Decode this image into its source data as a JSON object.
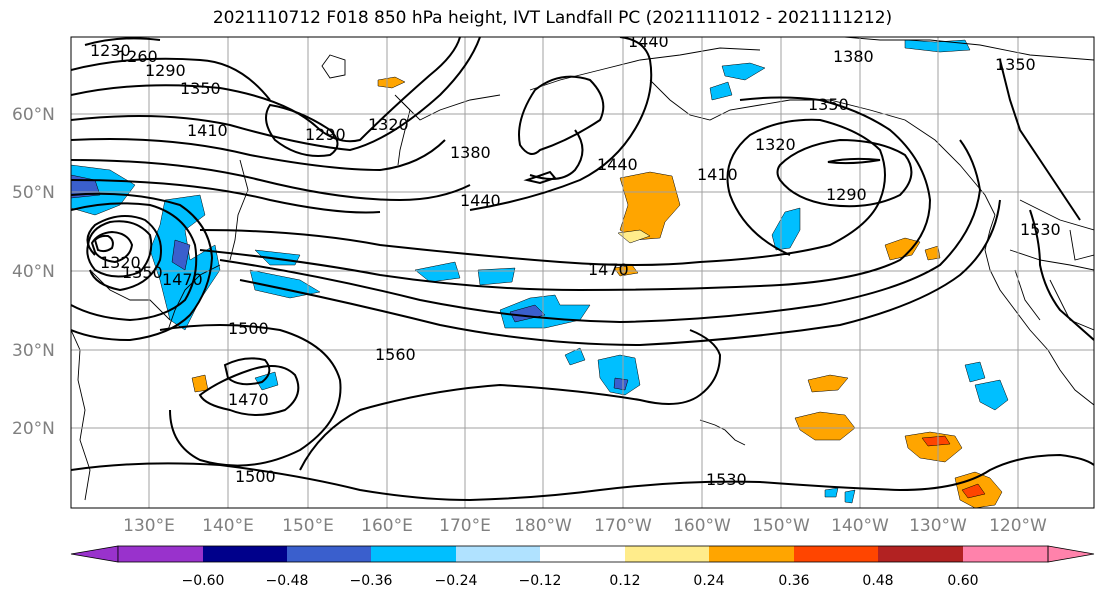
{
  "title": "2021110712 F018 850 hPa height, IVT Landfall PC (2021111012 - 2021111212)",
  "lat_labels": [
    "60°N",
    "50°N",
    "40°N",
    "30°N",
    "20°N"
  ],
  "lon_labels": [
    "130°E",
    "140°E",
    "150°E",
    "160°E",
    "170°E",
    "180°W",
    "170°W",
    "160°W",
    "150°W",
    "140°W",
    "130°W",
    "120°W"
  ],
  "contour_labels": [
    "1230",
    "1260",
    "1290",
    "1350",
    "1410",
    "1290",
    "1320",
    "1380",
    "1440",
    "1440",
    "1440",
    "1380",
    "1350",
    "1320",
    "1290",
    "1410",
    "1470",
    "1530",
    "1500",
    "1470",
    "1560",
    "1500",
    "1530",
    "1350",
    "1320",
    "1470",
    "1350"
  ],
  "colorbar": {
    "ticks": [
      "−0.60",
      "−0.48",
      "−0.36",
      "−0.24",
      "−0.12",
      "0.12",
      "0.24",
      "0.36",
      "0.48",
      "0.60"
    ],
    "colors": [
      "#9932CC",
      "#00008B",
      "#3A5FCD",
      "#00BFFF",
      "#B0E2FF",
      "#FFFFFF",
      "#FFEC8B",
      "#FFA500",
      "#FF4500",
      "#B22222",
      "#FF82AB"
    ]
  }
}
